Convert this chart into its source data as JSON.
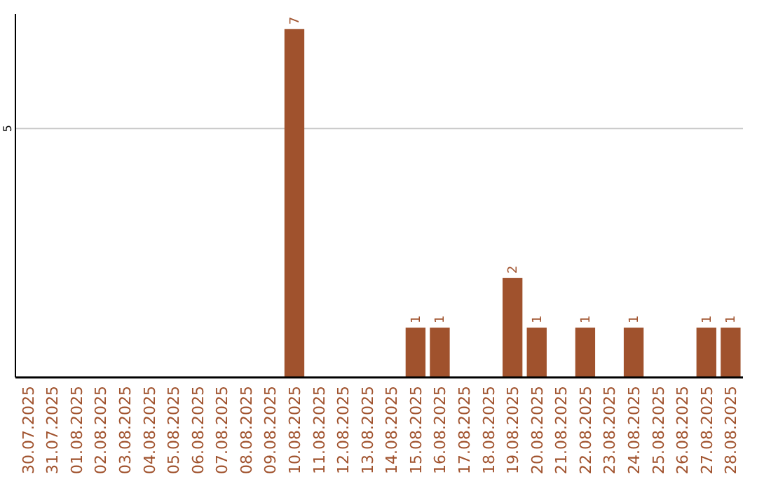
{
  "chart_data": {
    "type": "bar",
    "categories": [
      "30.07.2025",
      "31.07.2025",
      "01.08.2025",
      "02.08.2025",
      "03.08.2025",
      "04.08.2025",
      "05.08.2025",
      "06.08.2025",
      "07.08.2025",
      "08.08.2025",
      "09.08.2025",
      "10.08.2025",
      "11.08.2025",
      "12.08.2025",
      "13.08.2025",
      "14.08.2025",
      "15.08.2025",
      "16.08.2025",
      "17.08.2025",
      "18.08.2025",
      "19.08.2025",
      "20.08.2025",
      "21.08.2025",
      "22.08.2025",
      "23.08.2025",
      "24.08.2025",
      "25.08.2025",
      "26.08.2025",
      "27.08.2025",
      "28.08.2025"
    ],
    "values": [
      0,
      0,
      0,
      0,
      0,
      0,
      0,
      0,
      0,
      0,
      0,
      7,
      0,
      0,
      0,
      0,
      1,
      1,
      0,
      0,
      2,
      1,
      0,
      1,
      0,
      1,
      0,
      0,
      1,
      1
    ],
    "value_labels": [
      null,
      null,
      null,
      null,
      null,
      null,
      null,
      null,
      null,
      null,
      null,
      "7",
      null,
      null,
      null,
      null,
      "1",
      "1",
      null,
      null,
      "2",
      "1",
      null,
      "1",
      null,
      "1",
      null,
      null,
      "1",
      "1"
    ],
    "color": "#a0522d",
    "ylim": [
      0,
      7.3
    ],
    "yticks": [
      5
    ],
    "grid": "y"
  }
}
